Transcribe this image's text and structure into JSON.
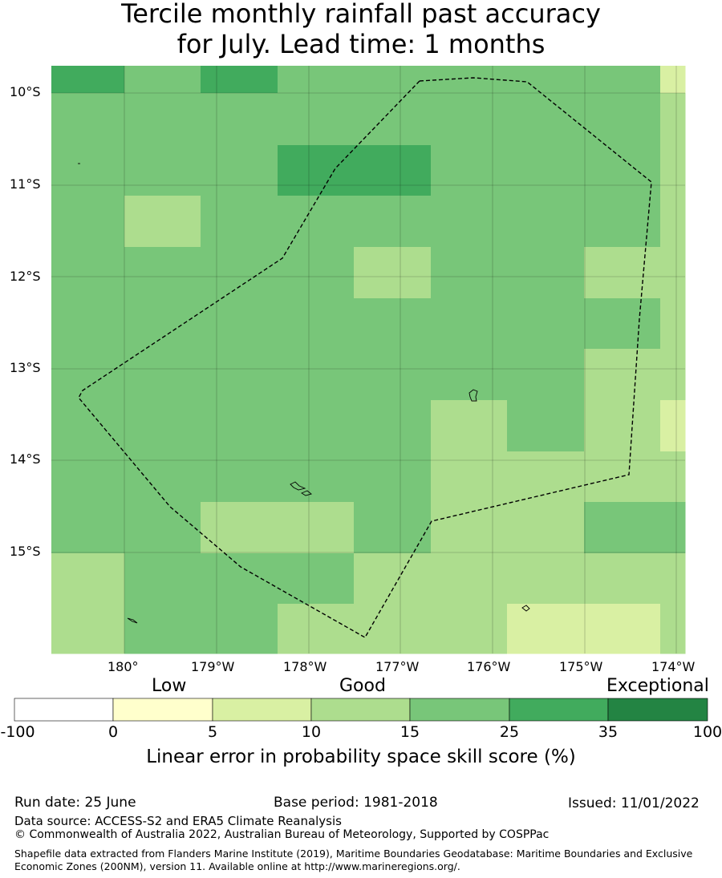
{
  "title_line1": "Tercile monthly rainfall past accuracy",
  "title_line2": "for July. Lead time: 1 months",
  "map": {
    "lon_labels": [
      "180°",
      "179°W",
      "178°W",
      "177°W",
      "176°W",
      "175°W",
      "174°W"
    ],
    "lat_labels": [
      "10°S",
      "11°S",
      "12°S",
      "13°S",
      "14°S",
      "15°S"
    ],
    "gridlines": true,
    "boundary_style": "dashed",
    "colors": {
      "c35": "#41ab5d",
      "c25": "#78c679",
      "c15": "#addd8e",
      "c10": "#d9f0a3",
      "c5": "#ffffcc"
    },
    "grid_cells": [
      [
        "c35",
        "c25",
        "c35",
        "c25",
        "c25",
        "c25",
        "c25",
        "c25",
        "c10"
      ],
      [
        "c25",
        "c25",
        "c25",
        "c25",
        "c25",
        "c25",
        "c25",
        "c25",
        "c15"
      ],
      [
        "c25",
        "c25",
        "c25",
        "c35",
        "c35",
        "c25",
        "c25",
        "c25",
        "c15"
      ],
      [
        "c25",
        "c15",
        "c25",
        "c25",
        "c25",
        "c25",
        "c25",
        "c25",
        "c15"
      ],
      [
        "c25",
        "c25",
        "c25",
        "c25",
        "c15",
        "c25",
        "c25",
        "c15",
        "c15"
      ],
      [
        "c25",
        "c25",
        "c25",
        "c25",
        "c25",
        "c25",
        "c25",
        "c25",
        "c15"
      ],
      [
        "c25",
        "c25",
        "c25",
        "c25",
        "c25",
        "c25",
        "c25",
        "c15",
        "c15"
      ],
      [
        "c25",
        "c25",
        "c25",
        "c25",
        "c25",
        "c15",
        "c25",
        "c15",
        "c10"
      ],
      [
        "c25",
        "c25",
        "c25",
        "c25",
        "c25",
        "c15",
        "c15",
        "c15",
        "c15"
      ],
      [
        "c25",
        "c25",
        "c15",
        "c15",
        "c25",
        "c15",
        "c15",
        "c25",
        "c25"
      ],
      [
        "c15",
        "c25",
        "c25",
        "c25",
        "c15",
        "c15",
        "c15",
        "c15",
        "c15"
      ],
      [
        "c15",
        "c25",
        "c25",
        "c15",
        "c15",
        "c15",
        "c10",
        "c10",
        "c15"
      ]
    ]
  },
  "colorbar": {
    "words": [
      "Low",
      "Good",
      "Exceptional"
    ],
    "ticks": [
      "-100",
      "0",
      "5",
      "10",
      "15",
      "25",
      "35",
      "100"
    ],
    "colors": [
      "#ffffff",
      "#ffffcc",
      "#d9f0a3",
      "#addd8e",
      "#78c679",
      "#41ab5d",
      "#238443"
    ],
    "label": "Linear error in probability space skill score (%)"
  },
  "footer": {
    "run_date": "Run date: 25 June",
    "base_period": "Base period: 1981-2018",
    "issued": "Issued: 11/01/2022",
    "data_source": "Data source: ACCESS-S2 and ERA5 Climate Reanalysis",
    "copyright": "© Commonwealth of Australia 2022, Australian Bureau of Meteorology, Supported by COSPPac",
    "shapefile": "Shapefile data extracted from Flanders Marine Institute (2019), Maritime Boundaries Geodatabase: Maritime Boundaries and Exclusive Economic Zones (200NM), version 11. Available online at http://www.marineregions.org/."
  }
}
